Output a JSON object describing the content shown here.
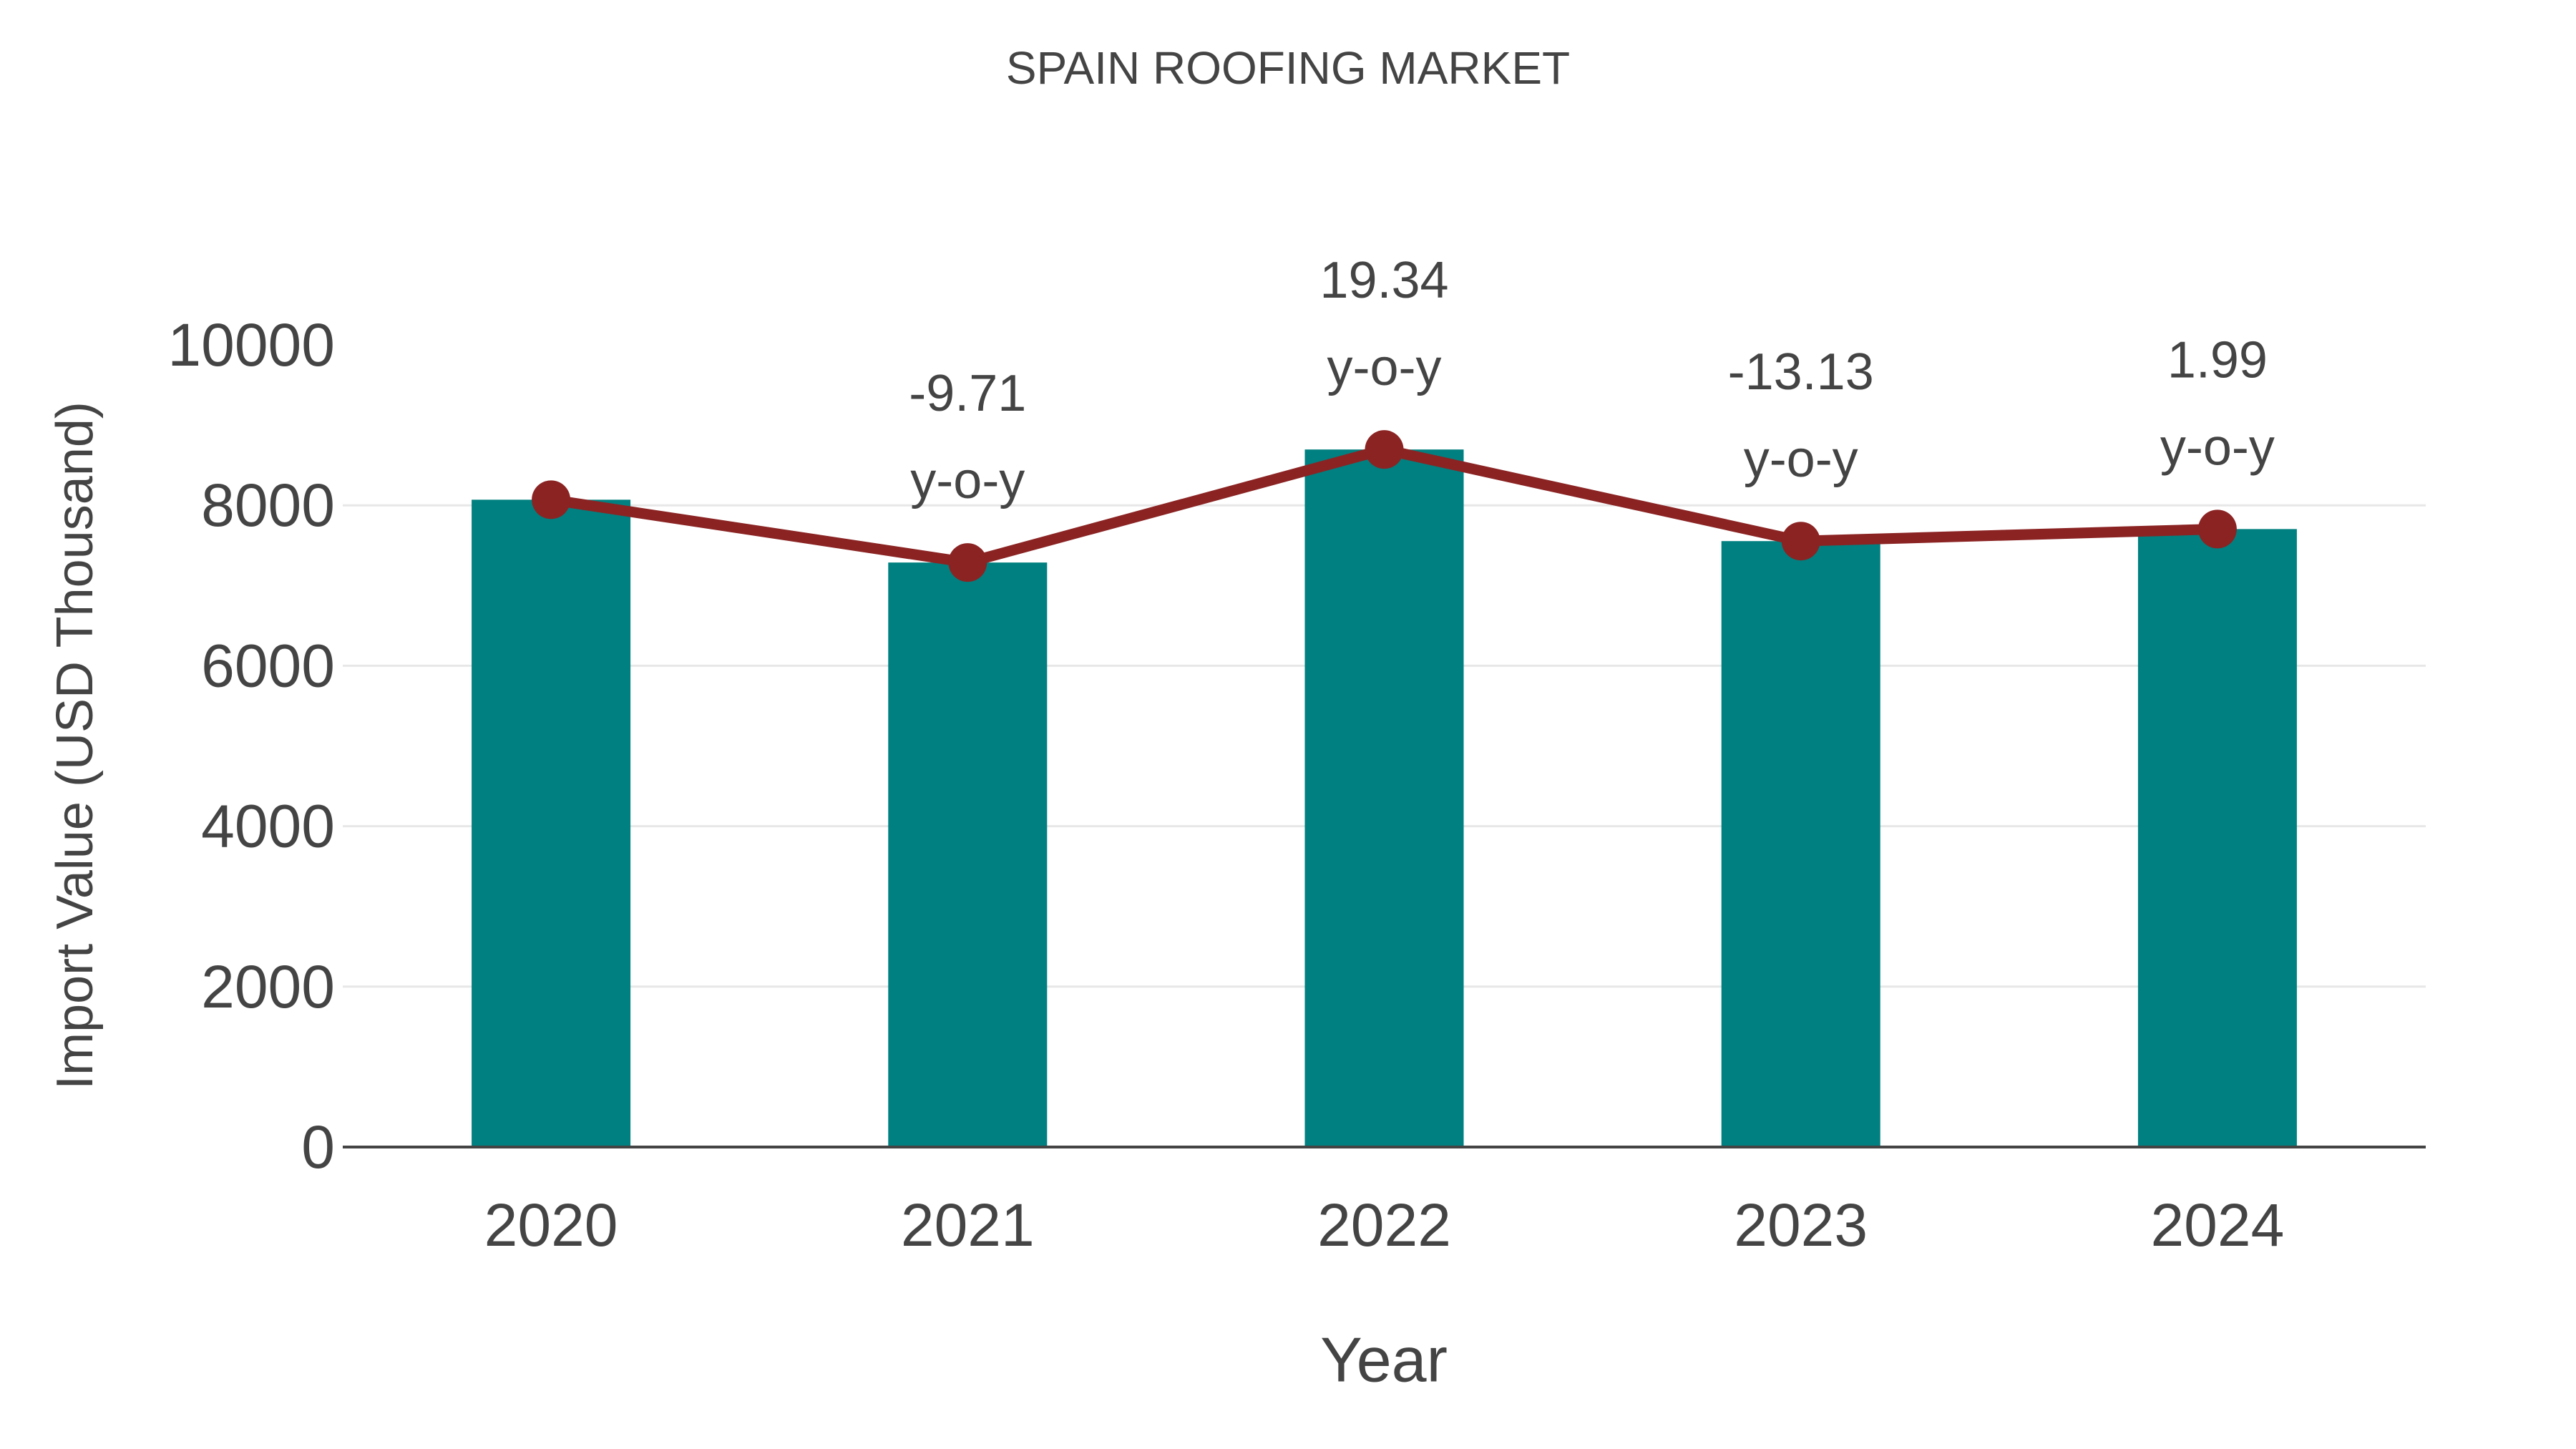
{
  "chart_data": {
    "type": "bar",
    "title": "SPAIN ROOFING MARKET",
    "xlabel": "Year",
    "ylabel": "Import Value (USD Thousand)",
    "categories": [
      "2020",
      "2021",
      "2022",
      "2023",
      "2024"
    ],
    "series": [
      {
        "name": "import-value-bars",
        "type": "bar",
        "values": [
          8070,
          7287,
          8696,
          7554,
          7704
        ]
      },
      {
        "name": "import-value-trend-line",
        "type": "line",
        "values": [
          8070,
          7287,
          8696,
          7554,
          7704
        ]
      }
    ],
    "annotations": [
      {
        "category": "2021",
        "value": "-9.71",
        "suffix": "y-o-y"
      },
      {
        "category": "2022",
        "value": "19.34",
        "suffix": "y-o-y"
      },
      {
        "category": "2023",
        "value": "-13.13",
        "suffix": "y-o-y"
      },
      {
        "category": "2024",
        "value": "1.99",
        "suffix": "y-o-y"
      }
    ],
    "ylim": [
      0,
      10000
    ],
    "yticks": [
      0,
      2000,
      4000,
      6000,
      8000,
      10000
    ],
    "grid": "horizontal only, gridlines at 2000-8000, none at 0 top axis or 10000",
    "legend_position": "none",
    "colors": {
      "bar": "#008080",
      "line": "#8B2323",
      "text": "#444444",
      "grid": "#e7e7e7",
      "axis": "#444444",
      "background": "#ffffff"
    }
  }
}
